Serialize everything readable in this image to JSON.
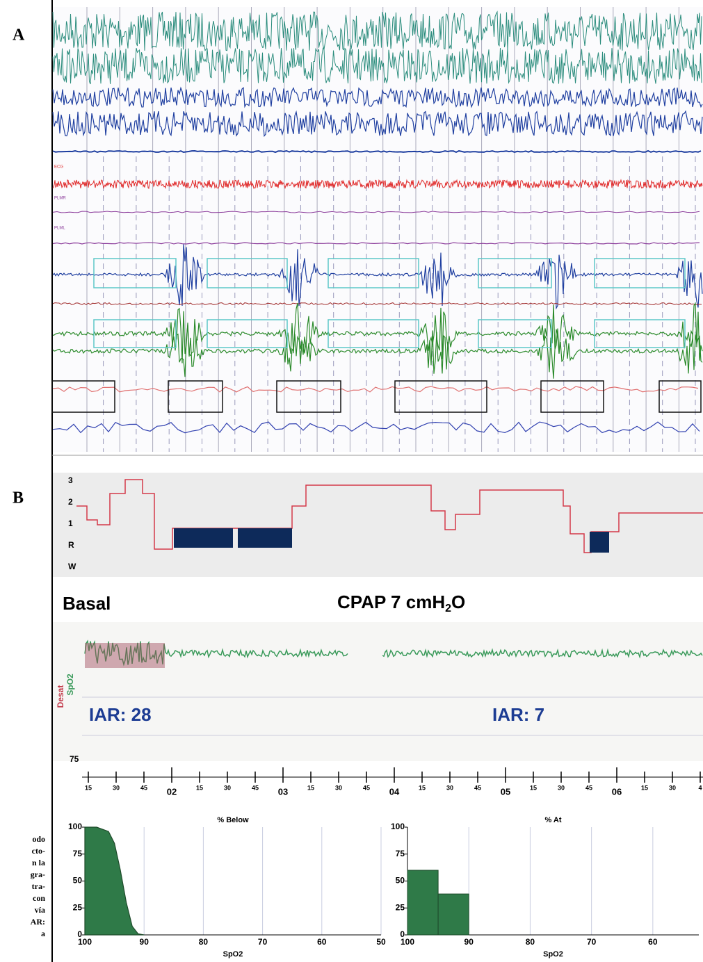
{
  "panel_a": {
    "label": "A",
    "channel_labels": [
      "ECG",
      "PLMR",
      "PLML"
    ]
  },
  "panel_b": {
    "label": "B",
    "hypnogram_labels": [
      "3",
      "2",
      "1",
      "R",
      "W"
    ],
    "basal": "Basal",
    "cpap": {
      "text": "CPAP  7 cmH",
      "sub": "2",
      "tail": "O"
    },
    "desat": "Desat",
    "spo2": "SpO2",
    "iar_basal": "IAR: 28",
    "iar_cpap": "IAR: 7",
    "trace_tick": "75",
    "time_labels": [
      "15",
      "30",
      "45",
      "02",
      "15",
      "30",
      "45",
      "03",
      "15",
      "30",
      "45",
      "04",
      "15",
      "30",
      "45",
      "05",
      "15",
      "30",
      "45",
      "06",
      "15",
      "30",
      "4"
    ]
  },
  "caption_fragments": [
    "odo",
    "cto-",
    "n la",
    "gra-",
    "tra-",
    "con",
    "vía",
    "AR:",
    "a"
  ],
  "chart_data": [
    {
      "type": "area",
      "title": "% Below",
      "x_label": "SpO2",
      "color": "#2f7a48",
      "x": [
        100,
        98,
        96,
        95,
        94,
        93,
        92,
        91,
        90
      ],
      "values": [
        100,
        100,
        96,
        85,
        60,
        30,
        8,
        1,
        0
      ],
      "xlim": [
        100,
        50
      ],
      "xticks": [
        100,
        90,
        80,
        70,
        60,
        50
      ],
      "ylim": [
        0,
        100
      ],
      "yticks": [
        0,
        25,
        50,
        75,
        100
      ],
      "grid": true
    },
    {
      "type": "histogram",
      "title": "% At",
      "x_label": "SpO2",
      "color": "#2f7a48",
      "bins": [
        100,
        95,
        90
      ],
      "values": [
        60,
        38
      ],
      "xlim": [
        100,
        52.5
      ],
      "xticks": [
        100,
        90,
        80,
        70,
        60
      ],
      "ylim": [
        0,
        100
      ],
      "yticks": [
        0,
        25,
        50,
        75,
        100
      ],
      "grid": true
    }
  ]
}
